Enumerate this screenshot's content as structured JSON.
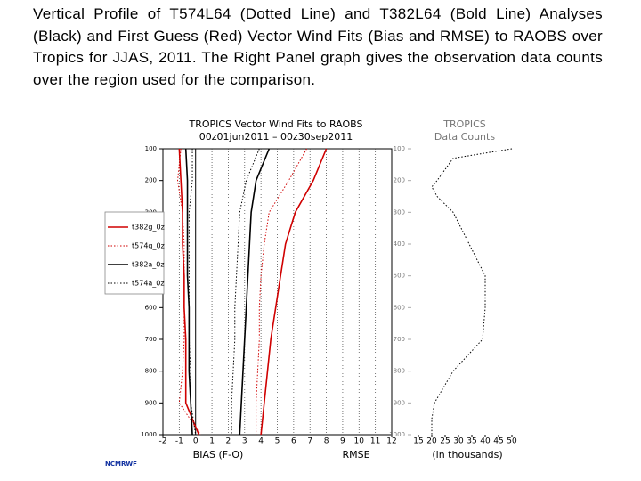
{
  "caption": "Vertical Profile of T574L64 (Dotted Line) and T382L64 (Bold Line) Analyses (Black) and First Guess (Red) Vector Wind Fits (Bias and RMSE) to RAOBS over Tropics for JJAS, 2011. The Right Panel graph gives the observation data counts over the region used for the comparison.",
  "footer": "NCMRWF",
  "chart_data": [
    {
      "type": "line",
      "title": "TROPICS Vector Wind Fits to RAOBS",
      "subtitle": "00z01jun2011 – 00z30sep2011",
      "xlabels": [
        "BIAS (F-O)",
        "RMSE"
      ],
      "y": [
        100,
        200,
        300,
        400,
        500,
        600,
        700,
        800,
        900,
        1000
      ],
      "xlim": [
        -2,
        12
      ],
      "xticks": [
        -2,
        -1,
        0,
        1,
        2,
        3,
        4,
        5,
        6,
        7,
        8,
        9,
        10,
        11,
        12
      ],
      "ylim": [
        1000,
        100
      ],
      "yticks": [
        100,
        200,
        300,
        400,
        500,
        600,
        700,
        800,
        900,
        1000
      ],
      "grid": true,
      "legend": "left",
      "series": [
        {
          "name": "t382g_0z",
          "color": "#d00000",
          "dash": "solid",
          "bias": [
            -1.0,
            -0.9,
            -0.8,
            -0.8,
            -0.7,
            -0.7,
            -0.6,
            -0.6,
            -0.6,
            0.2
          ],
          "rmse": [
            8.0,
            7.2,
            6.1,
            5.5,
            5.2,
            4.9,
            4.6,
            4.4,
            4.2,
            4.0
          ]
        },
        {
          "name": "t574g_0z",
          "color": "#d00000",
          "dash": "dotted",
          "bias": [
            -0.9,
            -1.1,
            -0.8,
            -0.7,
            -0.7,
            -0.7,
            -0.7,
            -0.8,
            -1.0,
            0.3
          ],
          "rmse": [
            6.8,
            5.7,
            4.5,
            4.2,
            4.0,
            3.9,
            3.9,
            3.8,
            3.7,
            3.7
          ]
        },
        {
          "name": "t382a_0z",
          "color": "#000000",
          "dash": "solid",
          "bias": [
            -0.6,
            -0.5,
            -0.5,
            -0.5,
            -0.5,
            -0.4,
            -0.4,
            -0.4,
            -0.3,
            -0.2
          ],
          "rmse": [
            4.5,
            3.7,
            3.4,
            3.3,
            3.2,
            3.1,
            3.0,
            2.9,
            2.8,
            2.7
          ]
        },
        {
          "name": "t574a_0z",
          "color": "#000000",
          "dash": "dotted",
          "bias": [
            -0.2,
            -0.2,
            -0.4,
            -0.4,
            -0.4,
            -0.4,
            -0.4,
            -0.3,
            -0.3,
            0.0
          ],
          "rmse": [
            3.9,
            3.1,
            2.7,
            2.6,
            2.5,
            2.4,
            2.4,
            2.3,
            2.2,
            2.2
          ]
        }
      ]
    },
    {
      "type": "line",
      "title": "TROPICS",
      "subtitle": "Data Counts",
      "xlabels": [
        "(in thousands)"
      ],
      "y": [
        100,
        130,
        200,
        220,
        250,
        300,
        400,
        500,
        600,
        700,
        800,
        900,
        950,
        1000
      ],
      "values": [
        50,
        28,
        22,
        20,
        22,
        28,
        34,
        40,
        40,
        39,
        28,
        21,
        20,
        20
      ],
      "color": "#000000",
      "dash": "dotted",
      "xlim": [
        15,
        50
      ],
      "xticks": [
        15,
        20,
        25,
        30,
        35,
        40,
        45,
        50
      ],
      "ylim": [
        1000,
        100
      ],
      "yticks": [
        100,
        200,
        300,
        400,
        500,
        600,
        700,
        800,
        900,
        1000
      ]
    }
  ]
}
